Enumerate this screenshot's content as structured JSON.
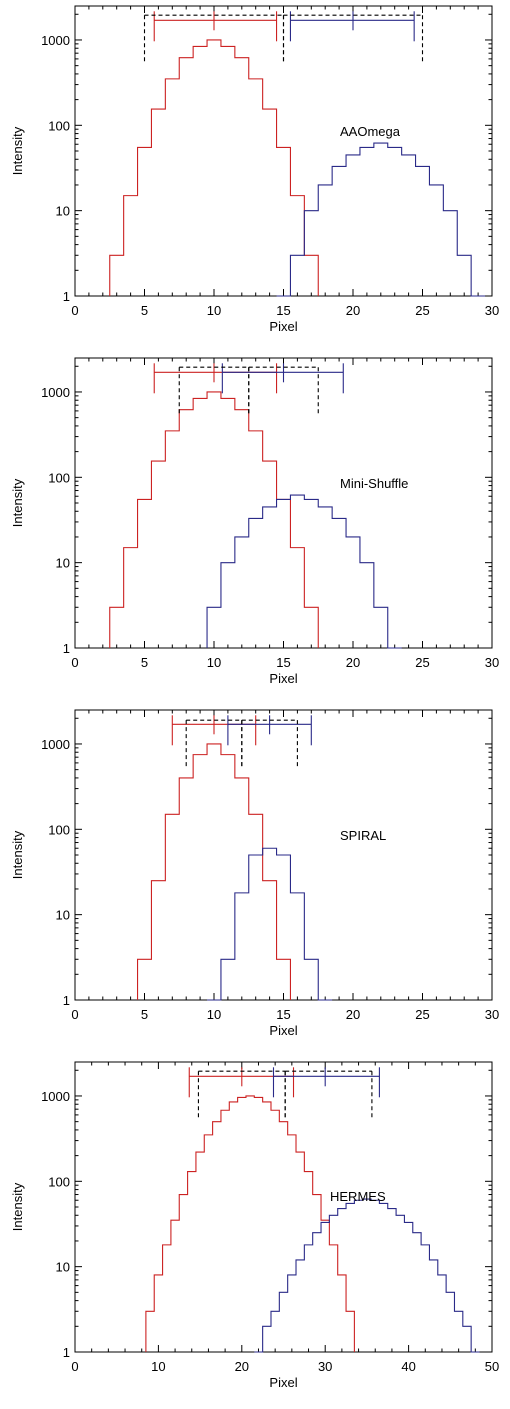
{
  "colors": {
    "red": "#cc2222",
    "blue": "#2a2a88",
    "axis": "#000000",
    "dashed": "#000000"
  },
  "chart_data": [
    {
      "type": "line",
      "title": "",
      "label": "AAOmega",
      "xlabel": "Pixel",
      "ylabel": "Intensity",
      "xlim": [
        0,
        30
      ],
      "ylim": [
        1,
        2500
      ],
      "yscale": "log",
      "xticks": [
        0,
        5,
        10,
        15,
        20,
        25,
        30
      ],
      "yticks": [
        1,
        10,
        100,
        1000
      ],
      "series": [
        {
          "color": "red",
          "step": 1,
          "x_start": 2.5,
          "values": [
            3,
            15,
            55,
            155,
            350,
            620,
            840,
            1000,
            840,
            620,
            350,
            155,
            55,
            15,
            3
          ]
        },
        {
          "color": "blue",
          "step": 1,
          "x_start": 14.5,
          "values": [
            1,
            3,
            10,
            20,
            33,
            45,
            55,
            62,
            55,
            45,
            33,
            20,
            10,
            3,
            1
          ]
        }
      ],
      "intervals": [
        {
          "color": "red",
          "style": "solid",
          "x1": 5.7,
          "x2": 14.5,
          "mid": 10,
          "y": 1700
        },
        {
          "color": "blue",
          "style": "solid",
          "x1": 15.5,
          "x2": 24.4,
          "mid": 20,
          "y": 1700
        },
        {
          "color": "black",
          "style": "dashed",
          "x1": 5.0,
          "x2": 15.0,
          "y": 1950
        },
        {
          "color": "black",
          "style": "dashed",
          "x1": 15.0,
          "x2": 25.0,
          "y": 1950
        }
      ]
    },
    {
      "type": "line",
      "title": "",
      "label": "Mini-Shuffle",
      "xlabel": "Pixel",
      "ylabel": "Intensity",
      "xlim": [
        0,
        30
      ],
      "ylim": [
        1,
        2500
      ],
      "yscale": "log",
      "xticks": [
        0,
        5,
        10,
        15,
        20,
        25,
        30
      ],
      "yticks": [
        1,
        10,
        100,
        1000
      ],
      "series": [
        {
          "color": "red",
          "step": 1,
          "x_start": 2.5,
          "values": [
            3,
            15,
            55,
            155,
            350,
            620,
            840,
            1000,
            840,
            620,
            350,
            155,
            55,
            15,
            3
          ]
        },
        {
          "color": "blue",
          "step": 1,
          "x_start": 9.5,
          "values": [
            3,
            10,
            20,
            33,
            45,
            55,
            62,
            55,
            45,
            33,
            20,
            10,
            3,
            1
          ]
        }
      ],
      "intervals": [
        {
          "color": "red",
          "style": "solid",
          "x1": 5.7,
          "x2": 14.5,
          "mid": 10,
          "y": 1700
        },
        {
          "color": "blue",
          "style": "solid",
          "x1": 10.6,
          "x2": 19.3,
          "mid": 15,
          "y": 1700
        },
        {
          "color": "black",
          "style": "dashed",
          "x1": 7.5,
          "x2": 12.5,
          "y": 1950
        },
        {
          "color": "black",
          "style": "dashed",
          "x1": 12.5,
          "x2": 17.5,
          "y": 1950
        }
      ]
    },
    {
      "type": "line",
      "title": "",
      "label": "SPIRAL",
      "xlabel": "Pixel",
      "ylabel": "Intensity",
      "xlim": [
        0,
        30
      ],
      "ylim": [
        1,
        2500
      ],
      "yscale": "log",
      "xticks": [
        0,
        5,
        10,
        15,
        20,
        25,
        30
      ],
      "yticks": [
        1,
        10,
        100,
        1000
      ],
      "series": [
        {
          "color": "red",
          "step": 1,
          "x_start": 4.5,
          "values": [
            3,
            25,
            150,
            400,
            750,
            1000,
            750,
            400,
            150,
            25,
            3
          ]
        },
        {
          "color": "blue",
          "step": 1,
          "x_start": 9.5,
          "values": [
            1,
            3,
            18,
            50,
            60,
            50,
            18,
            3,
            1
          ]
        }
      ],
      "intervals": [
        {
          "color": "red",
          "style": "solid",
          "x1": 7.0,
          "x2": 13.0,
          "mid": 10,
          "y": 1700
        },
        {
          "color": "blue",
          "style": "solid",
          "x1": 11.0,
          "x2": 17.0,
          "mid": 14,
          "y": 1700
        },
        {
          "color": "black",
          "style": "dashed",
          "x1": 8.0,
          "x2": 12.0,
          "y": 1900
        },
        {
          "color": "black",
          "style": "dashed",
          "x1": 12.0,
          "x2": 16.0,
          "y": 1900
        }
      ]
    },
    {
      "type": "line",
      "title": "",
      "label": "HERMES",
      "xlabel": "Pixel",
      "ylabel": "Intensity",
      "xlim": [
        0,
        50
      ],
      "ylim": [
        1,
        2500
      ],
      "yscale": "log",
      "xticks": [
        0,
        10,
        20,
        30,
        40,
        50
      ],
      "yticks": [
        1,
        10,
        100,
        1000
      ],
      "series": [
        {
          "color": "red",
          "step": 1,
          "x_start": 8.5,
          "values": [
            3,
            8,
            18,
            35,
            70,
            130,
            220,
            350,
            500,
            680,
            850,
            960,
            1000,
            960,
            850,
            680,
            500,
            350,
            220,
            130,
            70,
            35,
            18,
            8,
            3
          ]
        },
        {
          "color": "blue",
          "step": 1,
          "x_start": 21.5,
          "values": [
            1,
            2,
            3,
            5,
            8,
            12,
            18,
            25,
            33,
            40,
            48,
            55,
            60,
            62,
            60,
            55,
            48,
            40,
            33,
            25,
            18,
            12,
            8,
            5,
            3,
            2,
            1
          ]
        }
      ],
      "intervals": [
        {
          "color": "red",
          "style": "solid",
          "x1": 13.7,
          "x2": 26.2,
          "mid": 20,
          "y": 1700
        },
        {
          "color": "blue",
          "style": "solid",
          "x1": 23.8,
          "x2": 36.5,
          "mid": 30,
          "y": 1700
        },
        {
          "color": "black",
          "style": "dashed",
          "x1": 14.8,
          "x2": 25.2,
          "y": 1950
        },
        {
          "color": "black",
          "style": "dashed",
          "x1": 25.2,
          "x2": 35.6,
          "y": 1950
        }
      ]
    }
  ]
}
